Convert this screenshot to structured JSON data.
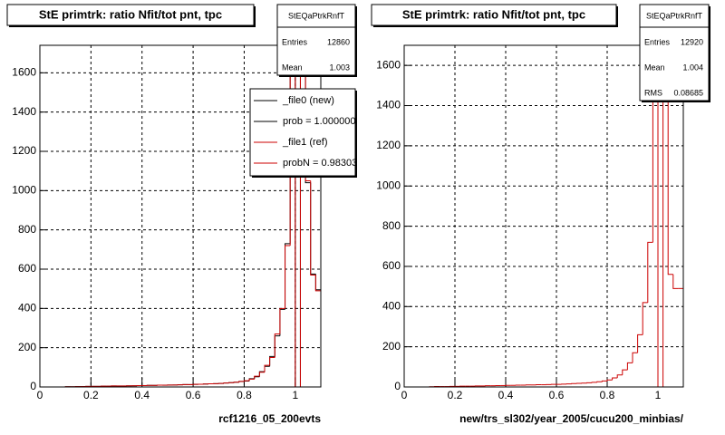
{
  "chart_data": [
    {
      "type": "histogram",
      "title": "StE primtrk: ratio Nfit/tot pnt, tpc",
      "x_label": "rcf1216_05_200evts",
      "bins": [
        0,
        0.02,
        0.04,
        0.06,
        0.08,
        0.1,
        0.12,
        0.14,
        0.16,
        0.18,
        0.2,
        0.22,
        0.24,
        0.26,
        0.28,
        0.3,
        0.32,
        0.34,
        0.36,
        0.38,
        0.4,
        0.42,
        0.44,
        0.46,
        0.48,
        0.5,
        0.52,
        0.54,
        0.56,
        0.58,
        0.6,
        0.62,
        0.64,
        0.66,
        0.68,
        0.7,
        0.72,
        0.74,
        0.76,
        0.78,
        0.8,
        0.82,
        0.84,
        0.86,
        0.88,
        0.9,
        0.92,
        0.94,
        0.96,
        0.98,
        1,
        1.02,
        1.04,
        1.06,
        1.08,
        1.1
      ],
      "series": [
        {
          "name": "_file0 (new)",
          "color": "#000000",
          "values": [
            0,
            0,
            0,
            0,
            0,
            1,
            1,
            2,
            2,
            3,
            3,
            3,
            4,
            4,
            5,
            5,
            5,
            6,
            6,
            7,
            7,
            8,
            8,
            9,
            9,
            10,
            10,
            11,
            12,
            12,
            13,
            14,
            15,
            16,
            17,
            18,
            20,
            22,
            24,
            28,
            30,
            42,
            52,
            78,
            105,
            155,
            260,
            395,
            730,
            1610,
            0,
            1600,
            1040,
            575,
            495
          ]
        },
        {
          "name": "_file1 (ref)",
          "color": "#cc0000",
          "values": [
            0,
            0,
            0,
            0,
            0,
            1,
            1,
            2,
            2,
            3,
            3,
            3,
            4,
            4,
            5,
            5,
            5,
            6,
            6,
            7,
            7,
            8,
            8,
            9,
            9,
            10,
            10,
            11,
            12,
            12,
            13,
            14,
            15,
            16,
            17,
            18,
            20,
            22,
            24,
            28,
            32,
            40,
            55,
            75,
            110,
            150,
            270,
            400,
            720,
            1600,
            0,
            1620,
            1050,
            570,
            490
          ]
        }
      ],
      "legend_notes": [
        "prob = 1.000000",
        "probN = 0.98303"
      ],
      "xlim": [
        0,
        1.1
      ],
      "ylim": [
        0,
        1740
      ],
      "xticks": [
        0,
        0.2,
        0.4,
        0.6,
        0.8,
        1
      ],
      "yticks": [
        0,
        200,
        400,
        600,
        800,
        1000,
        1200,
        1400,
        1600
      ],
      "grid": true,
      "stats": {
        "title": "StEQaPtrkRnfT",
        "entries": [
          {
            "label": "Entries",
            "value": 12860
          },
          {
            "label": "Mean",
            "value": 1.003
          }
        ]
      }
    },
    {
      "type": "histogram",
      "title": "StE primtrk: ratio Nfit/tot pnt, tpc",
      "x_label": "new/trs_sl302/year_2005/cucu200_minbias/",
      "bins": [
        0,
        0.02,
        0.04,
        0.06,
        0.08,
        0.1,
        0.12,
        0.14,
        0.16,
        0.18,
        0.2,
        0.22,
        0.24,
        0.26,
        0.28,
        0.3,
        0.32,
        0.34,
        0.36,
        0.38,
        0.4,
        0.42,
        0.44,
        0.46,
        0.48,
        0.5,
        0.52,
        0.54,
        0.56,
        0.58,
        0.6,
        0.62,
        0.64,
        0.66,
        0.68,
        0.7,
        0.72,
        0.74,
        0.76,
        0.78,
        0.8,
        0.82,
        0.84,
        0.86,
        0.88,
        0.9,
        0.92,
        0.94,
        0.96,
        0.98,
        1,
        1.02,
        1.04,
        1.06,
        1.08,
        1.1
      ],
      "series": [
        {
          "color": "#cc0000",
          "values": [
            0,
            0,
            0,
            0,
            0,
            1,
            2,
            2,
            2,
            3,
            3,
            4,
            4,
            4,
            5,
            5,
            6,
            6,
            7,
            7,
            8,
            8,
            9,
            9,
            10,
            10,
            11,
            11,
            12,
            13,
            13,
            14,
            15,
            17,
            18,
            19,
            21,
            23,
            26,
            30,
            35,
            45,
            60,
            85,
            120,
            170,
            260,
            420,
            720,
            1800,
            0,
            1800,
            560,
            490,
            490
          ]
        }
      ],
      "xlim": [
        0,
        1.1
      ],
      "ylim": [
        0,
        1700
      ],
      "xticks": [
        0,
        0.2,
        0.4,
        0.6,
        0.8,
        1
      ],
      "yticks": [
        0,
        200,
        400,
        600,
        800,
        1000,
        1200,
        1400,
        1600
      ],
      "grid": true,
      "stats": {
        "title": "StEQaPtrkRnfT",
        "entries": [
          {
            "label": "Entries",
            "value": 12920
          },
          {
            "label": "Mean",
            "value": 1.004
          },
          {
            "label": "RMS",
            "value": 0.08685
          }
        ]
      }
    }
  ]
}
